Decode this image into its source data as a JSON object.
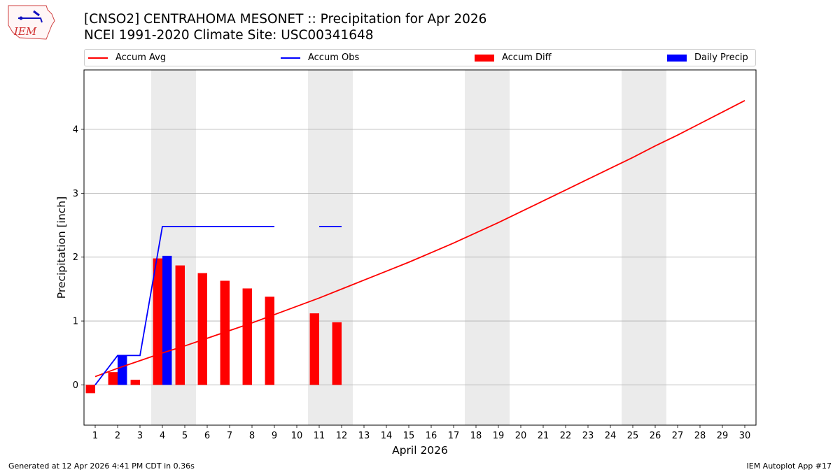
{
  "title_line1": "[CNSO2] CENTRAHOMA MESONET :: Precipitation for Apr 2026",
  "title_line2": "NCEI 1991-2020 Climate Site: USC00341648",
  "logo": {
    "text": "IEM"
  },
  "legend": [
    {
      "label": "Accum Avg",
      "color": "#ff0000",
      "kind": "line"
    },
    {
      "label": "Accum Obs",
      "color": "#0000ff",
      "kind": "line"
    },
    {
      "label": "Accum Diff",
      "color": "#ff0000",
      "kind": "patch"
    },
    {
      "label": "Daily Precip",
      "color": "#0000ff",
      "kind": "patch"
    }
  ],
  "footer": {
    "generated": "Generated at 12 Apr 2026 4:41 PM CDT in 0.36s",
    "app": "IEM Autoplot App #17"
  },
  "chart_data": {
    "type": "bar",
    "xlabel": "April 2026",
    "ylabel": "Precipitation [inch]",
    "xlim": [
      0.5,
      30.5
    ],
    "ylim": [
      -0.63,
      4.93
    ],
    "yticks": [
      0,
      1,
      2,
      3,
      4
    ],
    "days": [
      1,
      2,
      3,
      4,
      5,
      6,
      7,
      8,
      9,
      10,
      11,
      12,
      13,
      14,
      15,
      16,
      17,
      18,
      19,
      20,
      21,
      22,
      23,
      24,
      25,
      26,
      27,
      28,
      29,
      30
    ],
    "weekend_spans": [
      [
        3.5,
        5.5
      ],
      [
        10.5,
        12.5
      ],
      [
        17.5,
        19.5
      ],
      [
        24.5,
        26.5
      ]
    ],
    "grid": "horizontal",
    "series": [
      {
        "name": "Accum Avg",
        "type": "line",
        "color": "#ff0000",
        "x": [
          1,
          2,
          3,
          4,
          5,
          6,
          7,
          8,
          9,
          10,
          11,
          12,
          13,
          14,
          15,
          16,
          17,
          18,
          19,
          20,
          21,
          22,
          23,
          24,
          25,
          26,
          27,
          28,
          29,
          30
        ],
        "values": [
          0.13,
          0.26,
          0.38,
          0.5,
          0.61,
          0.73,
          0.85,
          0.97,
          1.1,
          1.23,
          1.36,
          1.5,
          1.64,
          1.78,
          1.92,
          2.07,
          2.22,
          2.38,
          2.54,
          2.71,
          2.88,
          3.05,
          3.22,
          3.39,
          3.56,
          3.74,
          3.91,
          4.09,
          4.27,
          4.45
        ]
      },
      {
        "name": "Accum Obs",
        "type": "line",
        "color": "#0000ff",
        "segments": [
          {
            "x": [
              1,
              2,
              3,
              4,
              5,
              6,
              7,
              8,
              9
            ],
            "values": [
              0.0,
              0.46,
              0.46,
              2.48,
              2.48,
              2.48,
              2.48,
              2.48,
              2.48
            ]
          },
          {
            "x": [
              11,
              12
            ],
            "values": [
              2.48,
              2.48
            ]
          }
        ]
      },
      {
        "name": "Accum Diff",
        "type": "bar",
        "color": "#ff0000",
        "x": [
          1,
          2,
          3,
          4,
          5,
          6,
          7,
          8,
          9,
          11,
          12
        ],
        "values": [
          -0.13,
          0.2,
          0.08,
          1.98,
          1.87,
          1.75,
          1.63,
          1.51,
          1.38,
          1.12,
          0.98
        ]
      },
      {
        "name": "Daily Precip",
        "type": "bar",
        "color": "#0000ff",
        "x": [
          2,
          4
        ],
        "values": [
          0.46,
          2.02
        ]
      }
    ]
  }
}
